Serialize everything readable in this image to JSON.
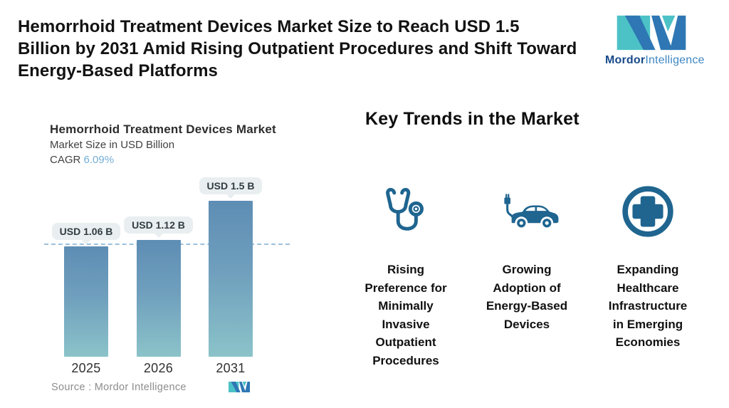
{
  "headline": {
    "text": "Hemorrhoid Treatment Devices Market Size to Reach USD 1.5 Billion by 2031 Amid Rising Outpatient Procedures and Shift Toward Energy-Based Platforms",
    "lines": [
      "Hemorrhoid Treatment Devices Market Size to Reach USD 1.5",
      "Billion by 2031 Amid Rising Outpatient Procedures and Shift Toward",
      "Energy-Based Platforms"
    ]
  },
  "brand": {
    "name_bold": "Mordor",
    "name_light": "Intelligence"
  },
  "chart": {
    "title": "Hemorrhoid Treatment Devices Market",
    "subtitle": "Market Size in USD Billion",
    "cagr_label": "CAGR",
    "cagr_value": "6.09%",
    "source": "Source :  Mordor Intelligence"
  },
  "chart_data": {
    "type": "bar",
    "title": "Hemorrhoid Treatment Devices Market",
    "ylabel": "Market Size in USD Billion",
    "cagr": "6.09%",
    "categories": [
      "2025",
      "2026",
      "2031"
    ],
    "values": [
      1.06,
      1.12,
      1.5
    ],
    "bar_labels": [
      "USD 1.06 B",
      "USD 1.12 B",
      "USD 1.5 B"
    ],
    "reference_line": 1.06,
    "ylim": [
      0,
      1.6
    ],
    "grid": false,
    "legend": "none",
    "bar_gradient_top": "#5e8db4",
    "bar_gradient_bottom": "#8bc3c9"
  },
  "trends": {
    "heading": "Key Trends in the Market",
    "items": [
      {
        "icon": "stethoscope-icon",
        "label": "Rising Preference for Minimally Invasive Outpatient Procedures",
        "lines": [
          "Rising",
          "Preference for",
          "Minimally",
          "Invasive",
          "Outpatient",
          "Procedures"
        ]
      },
      {
        "icon": "electric-car-icon",
        "label": "Growing Adoption of Energy-Based Devices",
        "lines": [
          "Growing",
          "Adoption of",
          "Energy-Based",
          "Devices"
        ]
      },
      {
        "icon": "medical-cross-icon",
        "label": "Expanding Healthcare Infrastructure in Emerging Economies",
        "lines": [
          "Expanding",
          "Healthcare",
          "Infrastructure",
          "in Emerging",
          "Economies"
        ]
      }
    ]
  },
  "colors": {
    "brand_teal": "#4cc2c7",
    "brand_blue": "#2e77b4",
    "brand_text_dark": "#17498a",
    "brand_text_light": "#3e87c3",
    "icon_blue": "#1f6590",
    "cagr_blue": "#74aed6",
    "dashed_line": "#9cc0dc",
    "pill_bg": "#e9eef0",
    "headline_text": "#121212"
  }
}
